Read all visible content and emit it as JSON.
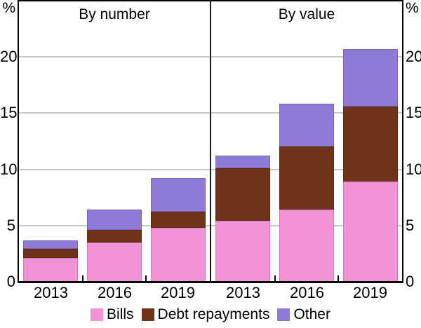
{
  "chart_data": {
    "type": "bar",
    "stacked": true,
    "unit": "%",
    "ylim": [
      0,
      25
    ],
    "yticks": [
      0,
      5,
      10,
      15,
      20
    ],
    "grid": true,
    "legend_position": "bottom",
    "categories": [
      "2013",
      "2016",
      "2019"
    ],
    "colors": {
      "Bills": "#F193D6",
      "Debt repayments": "#6F3319",
      "Other": "#8F7AD8"
    },
    "panels": [
      {
        "title": "By number",
        "series": [
          {
            "name": "Bills",
            "values": [
              2.1,
              3.5,
              4.8
            ]
          },
          {
            "name": "Debt repayments",
            "values": [
              0.8,
              1.1,
              1.4
            ]
          },
          {
            "name": "Other",
            "values": [
              0.8,
              1.8,
              3.0
            ]
          }
        ],
        "totals": [
          3.7,
          6.4,
          9.2
        ]
      },
      {
        "title": "By value",
        "series": [
          {
            "name": "Bills",
            "values": [
              5.4,
              6.4,
              8.9
            ]
          },
          {
            "name": "Debt repayments",
            "values": [
              4.7,
              5.6,
              6.7
            ]
          },
          {
            "name": "Other",
            "values": [
              1.1,
              3.8,
              5.1
            ]
          }
        ],
        "totals": [
          11.2,
          15.8,
          20.7
        ]
      }
    ]
  },
  "legend": {
    "items": [
      {
        "label": "Bills",
        "color": "#F193D6"
      },
      {
        "label": "Debt repayments",
        "color": "#6F3319"
      },
      {
        "label": "Other",
        "color": "#8F7AD8"
      }
    ]
  }
}
